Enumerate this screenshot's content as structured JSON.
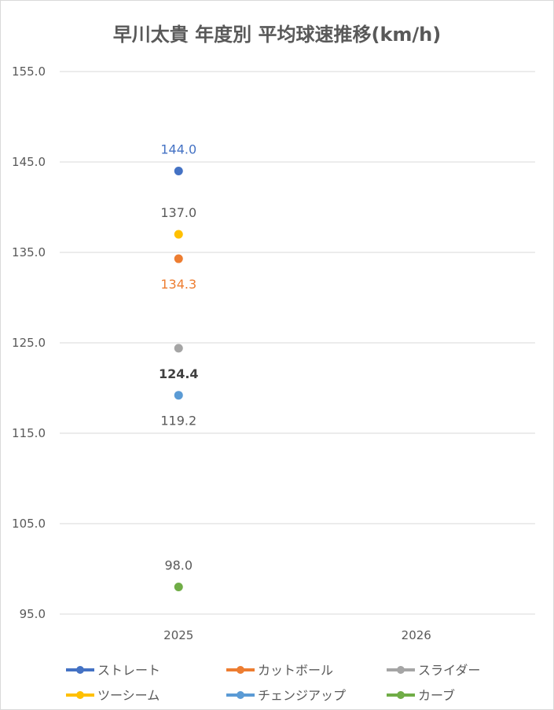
{
  "chart_data": {
    "type": "line",
    "title": "早川太貴 年度別 平均球速推移(km/h)",
    "categories": [
      "2025",
      "2026"
    ],
    "y_ticks": [
      "155.0",
      "145.0",
      "135.0",
      "125.0",
      "115.0",
      "105.0",
      "95.0"
    ],
    "ylim": [
      95,
      155
    ],
    "grid": true,
    "legend_position": "bottom",
    "series": [
      {
        "name": "ストレート",
        "values": [
          144.0,
          null
        ],
        "label": "144.0",
        "color": "#4472c4",
        "label_pos": "above"
      },
      {
        "name": "カットボール",
        "values": [
          134.3,
          null
        ],
        "label": "134.3",
        "color": "#ed7d31",
        "label_pos": "below"
      },
      {
        "name": "スライダー",
        "values": [
          124.4,
          null
        ],
        "label": "124.4",
        "color": "#a5a5a5",
        "label_pos": "below"
      },
      {
        "name": "ツーシーム",
        "values": [
          137.0,
          null
        ],
        "label": "137.0",
        "color": "#ffc000",
        "label_pos": "above"
      },
      {
        "name": "チェンジアップ",
        "values": [
          119.2,
          null
        ],
        "label": "119.2",
        "color": "#5b9bd5",
        "label_pos": "below"
      },
      {
        "name": "カーブ",
        "values": [
          98.0,
          null
        ],
        "label": "98.0",
        "color": "#70ad47",
        "label_pos": "above"
      }
    ],
    "label_colors": {
      "ストレート": "#4472c4",
      "カットボール": "#ed7d31",
      "スライダー": "#404040",
      "ツーシーム": "#595959",
      "チェンジアップ": "#595959",
      "カーブ": "#595959"
    }
  }
}
